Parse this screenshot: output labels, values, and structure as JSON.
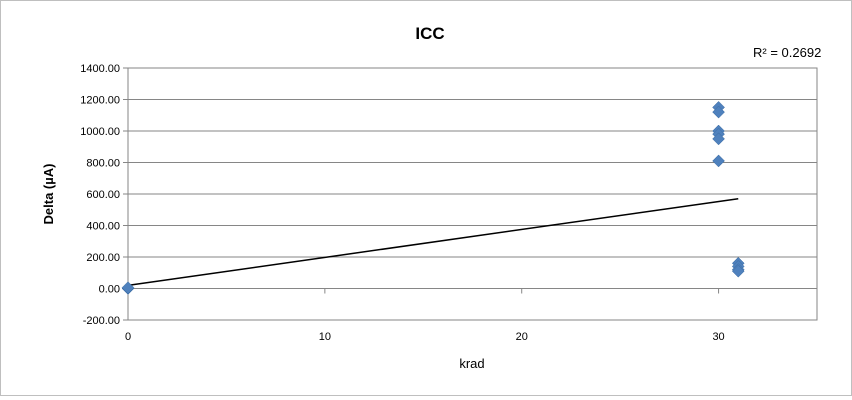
{
  "chart_data": {
    "type": "scatter",
    "title": "ICC",
    "xlabel": "krad",
    "ylabel": "Delta (µA)",
    "xlim": [
      0,
      35
    ],
    "ylim": [
      -200,
      1400
    ],
    "xticks": [
      0,
      10,
      20,
      30
    ],
    "yticks": [
      -200,
      0,
      200,
      400,
      600,
      800,
      1000,
      1200,
      1400
    ],
    "ytick_labels": [
      "-200.00",
      "0.00",
      "200.00",
      "400.00",
      "600.00",
      "800.00",
      "1000.00",
      "1200.00",
      "1400.00"
    ],
    "xtick_labels": [
      "0",
      "10",
      "20",
      "30"
    ],
    "grid": "horizontal",
    "marker": "diamond",
    "marker_color": "#4f81bd",
    "points": [
      {
        "x": 0,
        "y": 0
      },
      {
        "x": 0,
        "y": 5
      },
      {
        "x": 30,
        "y": 1150
      },
      {
        "x": 30,
        "y": 1120
      },
      {
        "x": 30,
        "y": 1000
      },
      {
        "x": 30,
        "y": 980
      },
      {
        "x": 30,
        "y": 950
      },
      {
        "x": 30,
        "y": 810
      },
      {
        "x": 31,
        "y": 160
      },
      {
        "x": 31,
        "y": 140
      },
      {
        "x": 31,
        "y": 120
      },
      {
        "x": 31,
        "y": 110
      }
    ],
    "trendline": {
      "type": "linear",
      "x": [
        0,
        31
      ],
      "y": [
        20,
        570
      ],
      "color": "#000000",
      "r_squared_label": "R² = 0.2692"
    }
  }
}
